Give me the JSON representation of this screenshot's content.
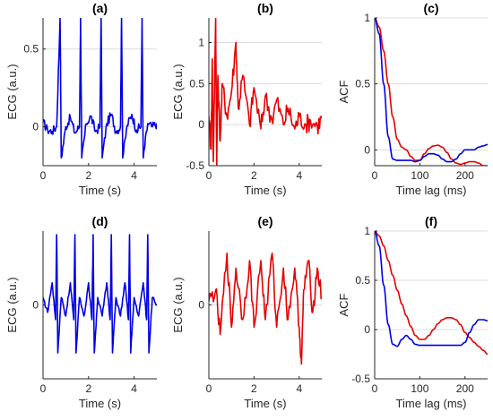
{
  "chart_data": [
    {
      "id": "a",
      "type": "line",
      "title": "(a)",
      "xlabel": "Time (s)",
      "ylabel": "ECG (a.u.)",
      "xlim": [
        0,
        5
      ],
      "ylim": [
        -0.25,
        0.7
      ],
      "xticks": [
        0,
        2,
        4
      ],
      "yticks": [
        0,
        0.5
      ],
      "ytick_labels": [
        "0",
        "0.5"
      ],
      "grid": "horizontal",
      "series": [
        {
          "color": "#0000e6",
          "shape": "ecg",
          "x": [
            0,
            0.2,
            0.4,
            0.6,
            0.75,
            0.8,
            1.0,
            1.2,
            1.4,
            1.6,
            1.65,
            1.7,
            1.9,
            2.1,
            2.3,
            2.5,
            2.55,
            2.6,
            2.8,
            3.0,
            3.2,
            3.4,
            3.45,
            3.5,
            3.7,
            3.9,
            4.1,
            4.3,
            4.35,
            4.4,
            4.6,
            4.8,
            5.0
          ],
          "y": [
            0.03,
            -0.02,
            -0.03,
            0.0,
            0.7,
            -0.2,
            0.0,
            0.06,
            -0.04,
            0.0,
            0.7,
            -0.2,
            0.02,
            0.07,
            -0.03,
            0.0,
            0.7,
            -0.2,
            0.02,
            0.08,
            -0.03,
            0.0,
            0.7,
            -0.2,
            0.01,
            0.08,
            -0.02,
            0.0,
            0.7,
            -0.2,
            0.02,
            0.0,
            0.02
          ]
        }
      ]
    },
    {
      "id": "b",
      "type": "line",
      "title": "(b)",
      "xlabel": "Time (s)",
      "ylabel": "ECG (a.u.)",
      "xlim": [
        0,
        5
      ],
      "ylim": [
        -0.5,
        1.3
      ],
      "xticks": [
        0,
        2,
        4
      ],
      "yticks": [
        -0.5,
        0,
        0.5,
        1
      ],
      "ytick_labels": [
        "-0.5",
        "0",
        "0.5",
        "1"
      ],
      "grid": "horizontal",
      "series": [
        {
          "color": "#e60000",
          "shape": "noise",
          "x": [
            0,
            0.1,
            0.15,
            0.2,
            0.3,
            0.35,
            0.4,
            0.5,
            0.6,
            0.8,
            1.0,
            1.2,
            1.3,
            1.5,
            1.8,
            2.0,
            2.3,
            2.5,
            2.8,
            3.0,
            3.3,
            3.5,
            3.8,
            4.0,
            4.3,
            4.5,
            4.8,
            5.0
          ],
          "y": [
            0.1,
            -0.3,
            0.8,
            -0.45,
            1.3,
            -0.5,
            0.6,
            -0.2,
            0.5,
            0.1,
            0.4,
            1.0,
            0.2,
            0.6,
            0.0,
            0.45,
            -0.05,
            0.35,
            0.05,
            0.3,
            0.0,
            0.2,
            -0.05,
            0.1,
            0.0,
            0.05,
            -0.02,
            0.08
          ]
        }
      ]
    },
    {
      "id": "c",
      "type": "line",
      "title": "(c)",
      "xlabel": "Time lag (ms)",
      "ylabel": "ACF",
      "xlim": [
        0,
        250
      ],
      "ylim": [
        -0.12,
        1
      ],
      "xticks": [
        0,
        100,
        200
      ],
      "yticks": [
        0,
        0.5,
        1
      ],
      "ytick_labels": [
        "0",
        "0.5",
        "1"
      ],
      "grid": "horizontal",
      "series": [
        {
          "color": "#e60000",
          "shape": "smooth",
          "x": [
            0,
            10,
            20,
            30,
            40,
            50,
            60,
            70,
            80,
            90,
            100,
            110,
            120,
            130,
            140,
            150,
            160,
            170,
            180,
            190,
            200,
            210,
            220,
            230,
            240,
            250
          ],
          "y": [
            1.0,
            0.93,
            0.75,
            0.5,
            0.25,
            0.08,
            0.02,
            0.0,
            -0.05,
            -0.08,
            -0.08,
            -0.03,
            0.01,
            0.03,
            0.035,
            0.02,
            -0.02,
            -0.07,
            -0.1,
            -0.11,
            -0.1,
            -0.09,
            -0.09,
            -0.1,
            -0.12,
            -0.12
          ]
        },
        {
          "color": "#0000e6",
          "shape": "smooth",
          "x": [
            0,
            10,
            20,
            30,
            40,
            50,
            60,
            70,
            80,
            90,
            100,
            110,
            120,
            130,
            140,
            150,
            160,
            170,
            180,
            190,
            200,
            210,
            220,
            230,
            240,
            250
          ],
          "y": [
            1.0,
            0.88,
            0.5,
            0.1,
            -0.07,
            -0.08,
            -0.08,
            -0.08,
            -0.08,
            -0.09,
            -0.08,
            -0.05,
            -0.03,
            -0.03,
            -0.04,
            -0.07,
            -0.09,
            -0.09,
            -0.07,
            -0.03,
            0.0,
            0.0,
            0.0,
            0.02,
            0.03,
            0.04
          ]
        }
      ]
    },
    {
      "id": "d",
      "type": "line",
      "title": "(d)",
      "xlabel": "Time (s)",
      "ylabel": "ECG (a.u.)",
      "xlim": [
        0,
        5
      ],
      "ylim": [
        -1,
        1
      ],
      "xticks": [
        0,
        2,
        4
      ],
      "yticks": [
        0
      ],
      "ytick_labels": [
        "0"
      ],
      "grid": "horizontal",
      "series": [
        {
          "color": "#0000e6",
          "shape": "ecg",
          "x": [
            0,
            0.2,
            0.4,
            0.55,
            0.6,
            0.65,
            0.8,
            1.0,
            1.2,
            1.35,
            1.4,
            1.45,
            1.6,
            1.8,
            2.0,
            2.15,
            2.2,
            2.25,
            2.4,
            2.6,
            2.8,
            2.95,
            3.0,
            3.05,
            3.2,
            3.4,
            3.6,
            3.75,
            3.8,
            3.85,
            4.0,
            4.2,
            4.4,
            4.55,
            4.6,
            4.65,
            4.8,
            5.0
          ],
          "y": [
            0.1,
            -0.1,
            0.3,
            -0.2,
            0.95,
            -0.65,
            0.1,
            -0.15,
            0.3,
            -0.2,
            0.95,
            -0.65,
            0.1,
            -0.15,
            0.3,
            -0.2,
            0.95,
            -0.65,
            0.1,
            -0.15,
            0.3,
            -0.2,
            0.95,
            -0.65,
            0.1,
            -0.15,
            0.3,
            -0.2,
            0.95,
            -0.65,
            0.1,
            -0.15,
            0.3,
            -0.2,
            0.95,
            -0.65,
            0.1,
            0.0
          ]
        }
      ]
    },
    {
      "id": "e",
      "type": "line",
      "title": "(e)",
      "xlabel": "Time (s)",
      "ylabel": "ECG (a.u.)",
      "xlim": [
        0,
        5
      ],
      "ylim": [
        -1,
        1
      ],
      "xticks": [
        0,
        2,
        4
      ],
      "yticks": [
        0
      ],
      "ytick_labels": [
        "0"
      ],
      "grid": "horizontal",
      "series": [
        {
          "color": "#e60000",
          "shape": "noise",
          "x": [
            0,
            0.3,
            0.5,
            0.8,
            1.0,
            1.2,
            1.5,
            1.8,
            2.0,
            2.3,
            2.5,
            2.8,
            3.0,
            3.3,
            3.5,
            3.8,
            4.0,
            4.1,
            4.2,
            4.4,
            4.6,
            4.8,
            5.0
          ],
          "y": [
            0.05,
            0.2,
            -0.4,
            0.7,
            -0.3,
            0.5,
            -0.2,
            0.6,
            -0.3,
            0.6,
            -0.2,
            0.7,
            -0.3,
            0.5,
            -0.2,
            0.5,
            -0.3,
            -0.8,
            0.2,
            0.6,
            -0.1,
            0.5,
            0.1
          ]
        }
      ]
    },
    {
      "id": "f",
      "type": "line",
      "title": "(f)",
      "xlabel": "Time lag (ms)",
      "ylabel": "ACF",
      "xlim": [
        0,
        250
      ],
      "ylim": [
        -0.5,
        1
      ],
      "xticks": [
        0,
        100,
        200
      ],
      "yticks": [
        -0.5,
        0,
        0.5,
        1
      ],
      "ytick_labels": [
        "-0.5",
        "0",
        "0.5",
        "1"
      ],
      "grid": "horizontal",
      "series": [
        {
          "color": "#e60000",
          "shape": "smooth",
          "x": [
            0,
            10,
            20,
            30,
            40,
            50,
            60,
            70,
            80,
            90,
            100,
            110,
            120,
            130,
            140,
            150,
            160,
            170,
            180,
            190,
            200,
            210,
            220,
            230,
            240,
            250
          ],
          "y": [
            1.0,
            0.95,
            0.85,
            0.7,
            0.55,
            0.4,
            0.26,
            0.14,
            0.03,
            -0.06,
            -0.1,
            -0.1,
            -0.06,
            0.0,
            0.06,
            0.1,
            0.12,
            0.12,
            0.1,
            0.05,
            -0.03,
            -0.08,
            -0.13,
            -0.17,
            -0.21,
            -0.25
          ]
        },
        {
          "color": "#0000e6",
          "shape": "smooth",
          "x": [
            0,
            10,
            20,
            30,
            40,
            50,
            60,
            70,
            80,
            90,
            100,
            110,
            120,
            130,
            140,
            150,
            160,
            170,
            180,
            190,
            200,
            210,
            220,
            230,
            240,
            250
          ],
          "y": [
            1.0,
            0.85,
            0.45,
            0.05,
            -0.15,
            -0.17,
            -0.1,
            -0.06,
            -0.1,
            -0.15,
            -0.16,
            -0.16,
            -0.16,
            -0.16,
            -0.16,
            -0.16,
            -0.16,
            -0.16,
            -0.16,
            -0.16,
            -0.13,
            -0.03,
            0.05,
            0.1,
            0.1,
            0.09
          ]
        }
      ]
    }
  ]
}
